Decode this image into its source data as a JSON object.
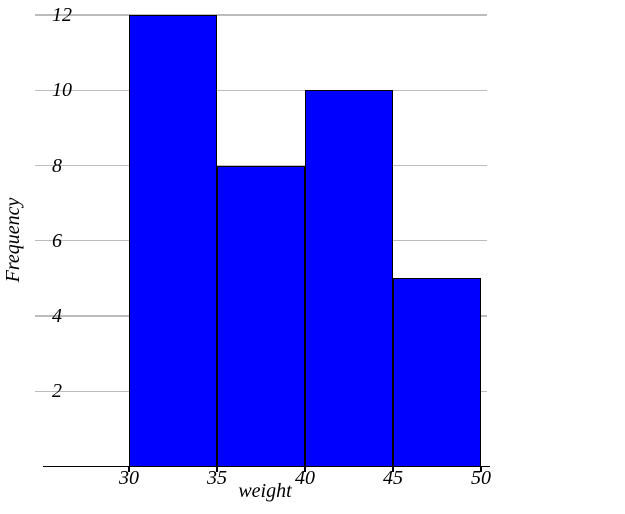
{
  "chart_data": {
    "type": "bar",
    "subtype": "histogram",
    "title": "",
    "xlabel": "weight",
    "ylabel": "Frequency",
    "bin_edges": [
      30,
      35,
      40,
      45,
      50
    ],
    "values": [
      12,
      8,
      10,
      5
    ],
    "x_ticks": [
      30,
      35,
      40,
      45,
      50
    ],
    "y_ticks": [
      2,
      4,
      6,
      8,
      10,
      12
    ],
    "xlim": [
      25,
      50.5
    ],
    "ylim": [
      0,
      12
    ],
    "grid": "horizontal",
    "legend": "none",
    "colors": {
      "bar_fill": "#0000fe",
      "bar_edge": "#000000",
      "gridline": "#bcbcbc",
      "axis": "#000000",
      "text": "#000000",
      "background": "#ffffff"
    }
  }
}
